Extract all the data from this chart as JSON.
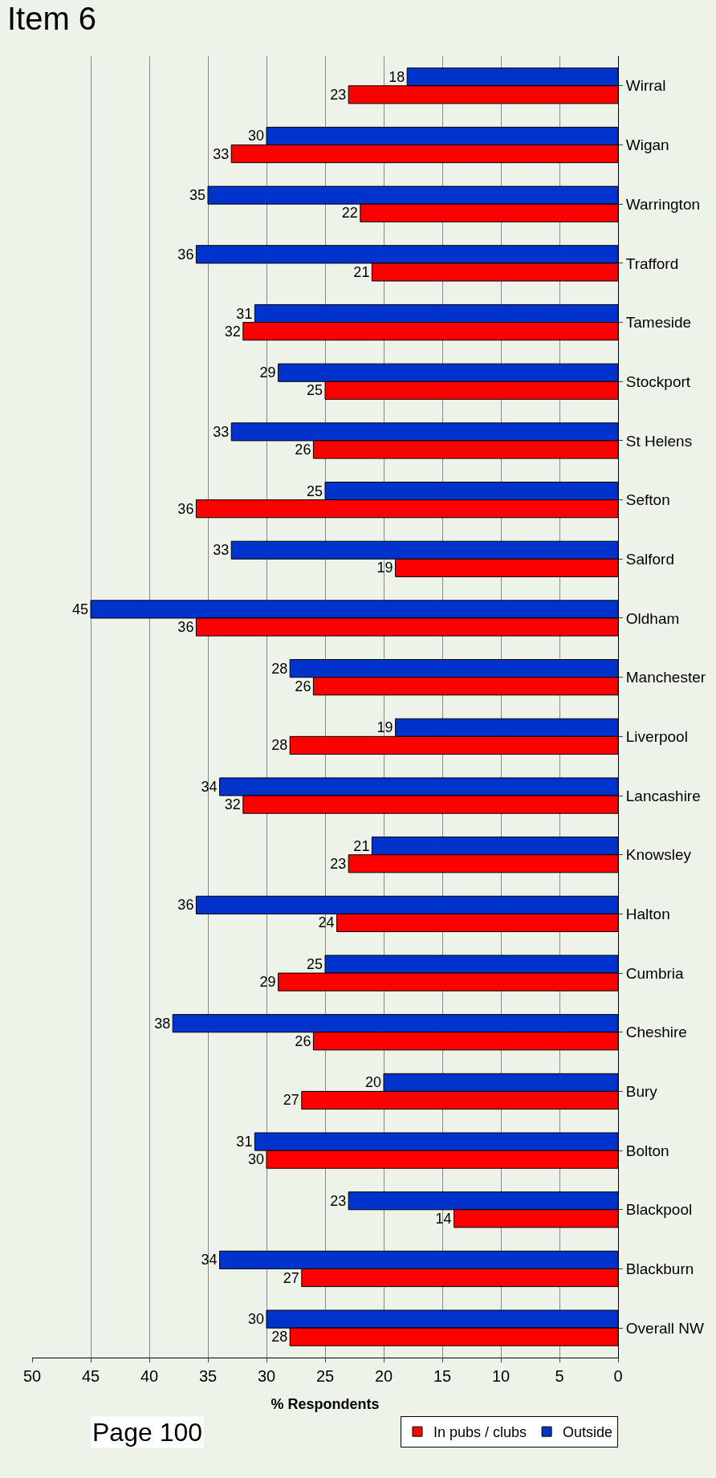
{
  "chart_data": {
    "type": "bar",
    "orientation": "horizontal",
    "title": "Item 6",
    "xlabel": "% Respondents",
    "categories": [
      "Wirral",
      "Wigan",
      "Warrington",
      "Trafford",
      "Tameside",
      "Stockport",
      "St Helens",
      "Sefton",
      "Salford",
      "Oldham",
      "Manchester",
      "Liverpool",
      "Lancashire",
      "Knowsley",
      "Halton",
      "Cumbria",
      "Cheshire",
      "Bury",
      "Bolton",
      "Blackpool",
      "Blackburn",
      "Overall NW"
    ],
    "series": [
      {
        "name": "Outside",
        "color": "#0033cc",
        "values": [
          18,
          30,
          35,
          36,
          31,
          29,
          33,
          25,
          33,
          45,
          28,
          19,
          34,
          21,
          36,
          25,
          38,
          20,
          31,
          23,
          34,
          30
        ]
      },
      {
        "name": "In pubs / clubs",
        "color": "#ff0000",
        "values": [
          23,
          33,
          22,
          21,
          32,
          25,
          26,
          36,
          19,
          36,
          26,
          28,
          32,
          23,
          24,
          29,
          26,
          27,
          30,
          14,
          27,
          28
        ]
      }
    ],
    "xlim": [
      50,
      0
    ],
    "xticks": [
      0,
      5,
      10,
      15,
      20,
      25,
      30,
      35,
      40,
      45,
      50
    ],
    "grid": "x",
    "legend": "bottom right",
    "data_labels": true,
    "annotations": [
      "Page 100"
    ]
  }
}
